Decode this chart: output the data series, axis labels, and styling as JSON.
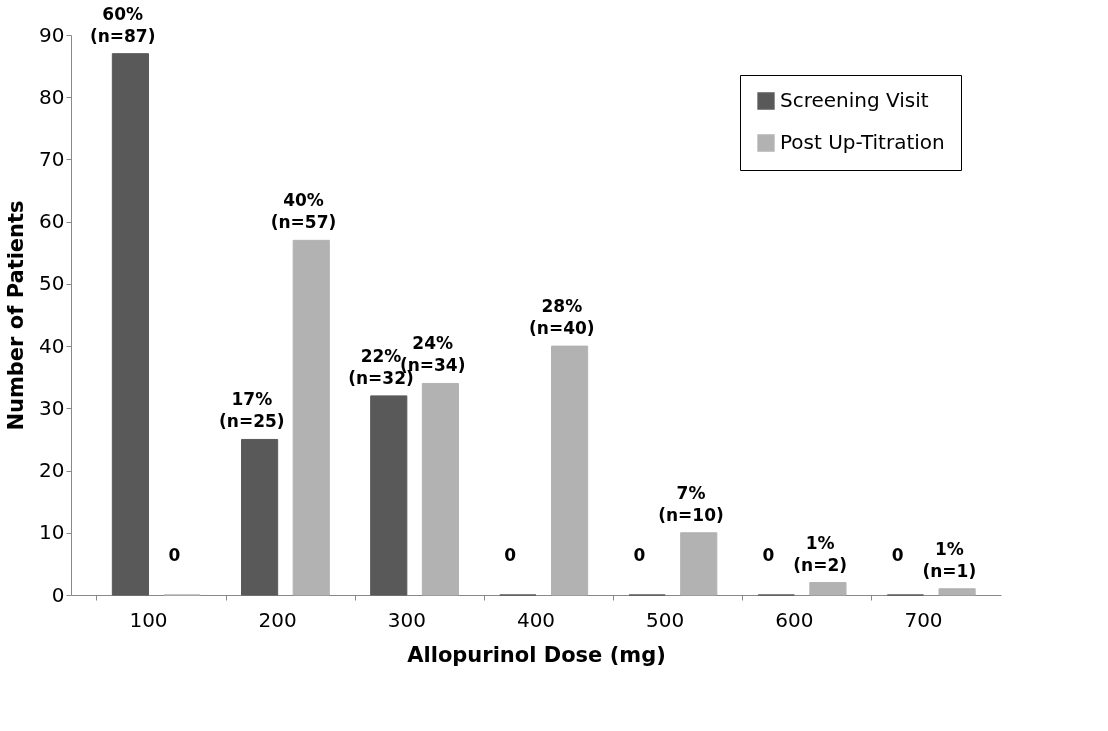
{
  "chart_data": {
    "type": "bar",
    "xlabel": "Allopurinol Dose (mg)",
    "ylabel": "Number of Patients",
    "categories": [
      "100",
      "200",
      "300",
      "400",
      "500",
      "600",
      "700"
    ],
    "series": [
      {
        "name": "Screening Visit",
        "color": "#595959",
        "values": [
          87,
          25,
          32,
          0,
          0,
          0,
          0
        ],
        "value_labels": [
          "60%\n(n=87)",
          "17%\n(n=25)",
          "22%\n(n=32)",
          "0",
          "0",
          "0",
          "0"
        ]
      },
      {
        "name": "Post Up-Titration",
        "color": "#b2b2b2",
        "values": [
          0,
          57,
          34,
          40,
          10,
          2,
          1
        ],
        "value_labels": [
          "0",
          "40%\n(n=57)",
          "24%\n(n=34)",
          "28%\n(n=40)",
          "7%\n(n=10)",
          "1%\n(n=2)",
          "1%\n(n=1)"
        ]
      }
    ],
    "ylim": [
      0,
      90
    ],
    "yticks": [
      0,
      10,
      20,
      30,
      40,
      50,
      60,
      70,
      80,
      90
    ],
    "grid": false,
    "legend": "top right"
  }
}
